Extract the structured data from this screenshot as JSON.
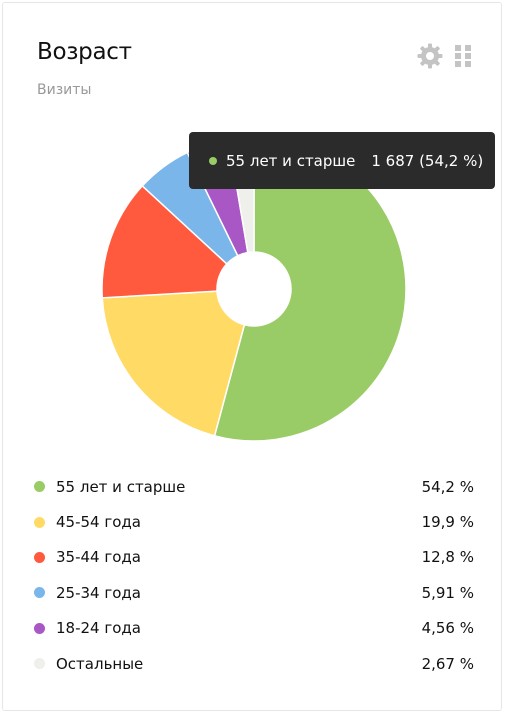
{
  "widget": {
    "title": "Возраст",
    "subtitle": "Визиты",
    "icons": {
      "settings": "gear-icon",
      "drag": "grid-drag-icon"
    },
    "icon_color": "#c4c4c4"
  },
  "tooltip": {
    "label": "55 лет и старше",
    "value": "1 687 (54,2 %)",
    "dot_color": "#99cc66"
  },
  "chart_data": {
    "type": "pie",
    "donut": true,
    "title": "",
    "slices": [
      {
        "label": "55 лет и старше",
        "value": 54.2,
        "value_label": "54,2 %",
        "color": "#99cc66"
      },
      {
        "label": "45-54 года",
        "value": 19.9,
        "value_label": "19,9 %",
        "color": "#ffdb66"
      },
      {
        "label": "35-44 года",
        "value": 12.8,
        "value_label": "12,8 %",
        "color": "#ff5a3d"
      },
      {
        "label": "25-34 года",
        "value": 5.91,
        "value_label": "5,91 %",
        "color": "#7ab6ea"
      },
      {
        "label": "18-24 года",
        "value": 4.56,
        "value_label": "4,56 %",
        "color": "#a957c4"
      },
      {
        "label": "Остальные",
        "value": 2.67,
        "value_label": "2,67 %",
        "color": "#efefec"
      }
    ],
    "legend_position": "bottom"
  }
}
